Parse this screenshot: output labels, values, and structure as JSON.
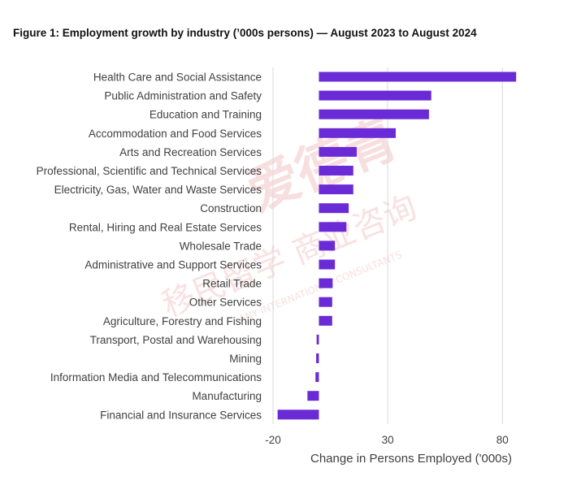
{
  "title": "Figure 1: Employment growth by industry (’000s persons) — August 2023 to August 2024",
  "colors": {
    "bar": "#6a2bd6",
    "grid": "#d9d9d9",
    "text": "#404040",
    "watermark": "#f3c4c4"
  },
  "watermark": {
    "brand": "爱德青",
    "line2": "移民留学 商业咨询",
    "line3": "ANY INTERNATIONAL CONSULTANTS"
  },
  "chart_data": {
    "type": "bar",
    "orientation": "horizontal",
    "title": "Figure 1: Employment growth by industry (’000s persons) — August 2023 to August 2024",
    "xlabel": "Change in Persons Employed ('000s)",
    "ylabel": "",
    "xlim": [
      -20,
      87
    ],
    "xticks": [
      -20,
      30,
      80
    ],
    "xtick_labels": [
      "-20",
      "30",
      "80"
    ],
    "grid": "vertical gridlines",
    "legend": "none",
    "categories": [
      "Health Care and Social Assistance",
      "Public Administration and Safety",
      "Education and Training",
      "Accommodation and Food Services",
      "Arts and Recreation Services",
      "Professional, Scientific and Technical Services",
      "Electricity, Gas, Water and Waste Services",
      "Construction",
      "Rental, Hiring and Real Estate Services",
      "Wholesale Trade",
      "Administrative and Support Services",
      "Retail Trade",
      "Other Services",
      "Agriculture, Forestry and Fishing",
      "Transport, Postal and Warehousing",
      "Mining",
      "Information Media and Telecommunications",
      "Manufacturing",
      "Financial and Insurance Services"
    ],
    "values": [
      86,
      49,
      48,
      33.5,
      16.5,
      15,
      15,
      13,
      12,
      7,
      7,
      6,
      5.8,
      5.8,
      -1,
      -1.2,
      -1.5,
      -5,
      -18
    ]
  }
}
